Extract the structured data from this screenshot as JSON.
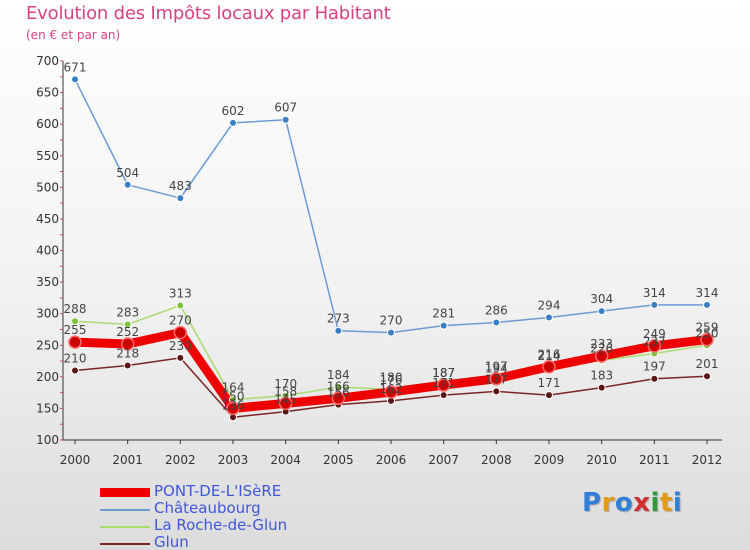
{
  "chart_data": {
    "type": "line",
    "title": "Evolution des Impôts locaux par Habitant",
    "subtitle": "(en € et par an)",
    "xlabel": "",
    "ylabel": "",
    "ylim": [
      100,
      700
    ],
    "yticks": [
      100,
      150,
      200,
      250,
      300,
      350,
      400,
      450,
      500,
      550,
      600,
      650,
      700
    ],
    "categories": [
      "2000",
      "2001",
      "2002",
      "2003",
      "2004",
      "2005",
      "2006",
      "2007",
      "2008",
      "2009",
      "2010",
      "2011",
      "2012"
    ],
    "grid": false,
    "legend_position": "bottom-left",
    "series": [
      {
        "name": "Châteaubourg",
        "color": "#6b9bd1",
        "marker": "#3a7fc4",
        "values": [
          671,
          504,
          483,
          602,
          607,
          273,
          270,
          281,
          286,
          294,
          304,
          314,
          314
        ],
        "labels": [
          "671",
          "504",
          "483",
          "602",
          "607",
          "273",
          "270",
          "281",
          "286",
          "294",
          "304",
          "314",
          "314"
        ]
      },
      {
        "name": "La Roche-de-Glun",
        "color": "#a8dc6e",
        "marker": "#7ec23a",
        "values": [
          288,
          283,
          313,
          164,
          170,
          184,
          180,
          187,
          194,
          214,
          226,
          237,
          250
        ],
        "labels": [
          "288",
          "283",
          "313",
          "164",
          "170",
          "184",
          "180",
          "187",
          "194",
          "214",
          "226",
          "237",
          "250"
        ]
      },
      {
        "name": "Glun",
        "color": "#7a2626",
        "marker": "#5a1414",
        "values": [
          210,
          218,
          230,
          136,
          145,
          156,
          162,
          171,
          177,
          171,
          183,
          197,
          201
        ],
        "labels": [
          "210",
          "218",
          "230",
          "136",
          "145",
          "156",
          "162",
          "171",
          "177",
          "171",
          "183",
          "197",
          "201"
        ]
      },
      {
        "name": "PONT-DE-L'ISèRE",
        "color": "#ee0000",
        "marker": "#cc0000",
        "values": [
          255,
          252,
          270,
          150,
          158,
          166,
          176,
          187,
          197,
          216,
          233,
          249,
          259
        ],
        "labels": [
          "255",
          "252",
          "270",
          "150",
          "158",
          "166",
          "176",
          "187",
          "197",
          "216",
          "233",
          "249",
          "259"
        ]
      }
    ]
  },
  "legend": {
    "items": [
      {
        "label": "PONT-DE-L'ISèRE"
      },
      {
        "label": "Châteaubourg"
      },
      {
        "label": "La Roche-de-Glun"
      },
      {
        "label": "Glun"
      }
    ]
  },
  "logo": {
    "letters": [
      "P",
      "r",
      "o",
      "x",
      "i",
      "t",
      "i"
    ],
    "colors": [
      "#2f7fd6",
      "#e39a14",
      "#2f7fd6",
      "#d62f2f",
      "#2f9a3a",
      "#e39a14",
      "#2f7fd6"
    ]
  }
}
